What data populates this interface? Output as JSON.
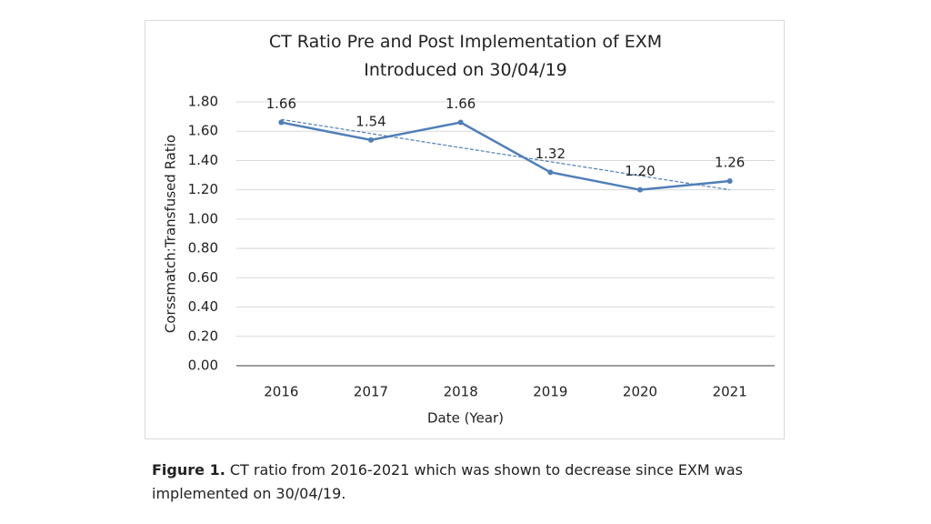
{
  "chart_data": {
    "type": "line",
    "title": "CT Ratio Pre and Post Implementation of EXM Introduced on 30/04/19",
    "x_label": "Date (Year)",
    "y_label": "Corssmatch:Transfused Ratio",
    "categories": [
      "2016",
      "2017",
      "2018",
      "2019",
      "2020",
      "2021"
    ],
    "values": [
      1.66,
      1.54,
      1.66,
      1.32,
      1.2,
      1.26
    ],
    "value_labels": [
      "1.66",
      "1.54",
      "1.66",
      "1.32",
      "1.20",
      "1.26"
    ],
    "color": "#4f7fb8",
    "trendline": true,
    "ylim": [
      0,
      1.8
    ],
    "yticks": [
      {
        "value": 0,
        "label": "0.00"
      },
      {
        "value": 0.2,
        "label": "0.20"
      },
      {
        "value": 0.4,
        "label": "0.40"
      },
      {
        "value": 0.6,
        "label": "0.60"
      },
      {
        "value": 0.8,
        "label": "0.80"
      },
      {
        "value": 1,
        "label": "1.00"
      },
      {
        "value": 1.2,
        "label": "1.20"
      },
      {
        "value": 1.4,
        "label": "1.40"
      },
      {
        "value": 1.6,
        "label": "1.60"
      },
      {
        "value": 1.8,
        "label": "1.80"
      }
    ],
    "grid": true
  },
  "caption": {
    "label": "Figure 1.",
    "text": "CT ratio from 2016-2021 which was shown to decrease since EXM was implemented on 30/04/19."
  }
}
